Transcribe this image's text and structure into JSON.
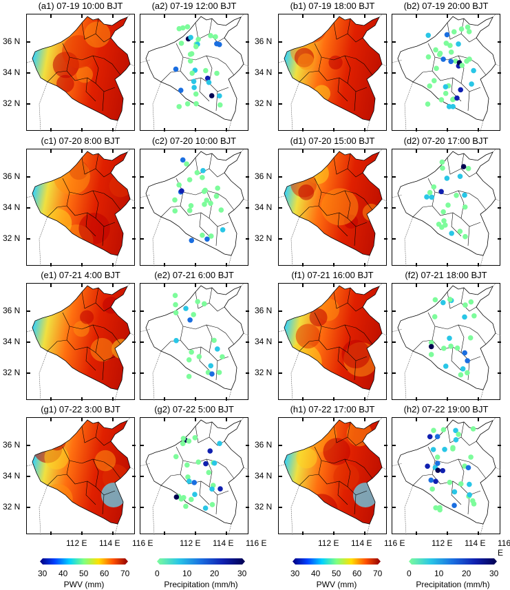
{
  "panels": [
    {
      "title": "(a1) 07-19 10:00 BJT",
      "kind": "pwv"
    },
    {
      "title": "(a2) 07-19 12:00 BJT",
      "kind": "precip"
    },
    {
      "title": "(b1) 07-19 18:00 BJT",
      "kind": "pwv"
    },
    {
      "title": "(b2) 07-19 20:00 BJT",
      "kind": "precip"
    },
    {
      "title": "(c1) 07-20 8:00 BJT",
      "kind": "pwv"
    },
    {
      "title": "(c2) 07-20 10:00 BJT",
      "kind": "precip"
    },
    {
      "title": "(d1) 07-20 15:00 BJT",
      "kind": "pwv"
    },
    {
      "title": "(d2) 07-20 17:00 BJT",
      "kind": "precip"
    },
    {
      "title": "(e1) 07-21 4:00 BJT",
      "kind": "pwv"
    },
    {
      "title": "(e2) 07-21 6:00 BJT",
      "kind": "precip"
    },
    {
      "title": "(f1) 07-21 16:00 BJT",
      "kind": "pwv"
    },
    {
      "title": "(f2) 07-21 18:00 BJT",
      "kind": "precip"
    },
    {
      "title": "(g1) 07-22 3:00 BJT",
      "kind": "pwv"
    },
    {
      "title": "(g2) 07-22 5:00 BJT",
      "kind": "precip"
    },
    {
      "title": "(h1) 07-22 17:00 BJT",
      "kind": "pwv"
    },
    {
      "title": "(h2) 07-22 19:00 BJT",
      "kind": "precip"
    }
  ],
  "lat_labels": [
    "36 N",
    "34 N",
    "32 N"
  ],
  "lon_labels": [
    "112 E",
    "114 E",
    "116 E"
  ],
  "colorbars": [
    {
      "label": "PWV (mm)",
      "ticks": [
        "30",
        "40",
        "50",
        "60",
        "70"
      ],
      "range": [
        30,
        70
      ],
      "colors": [
        "#00007f",
        "#0040ff",
        "#00d0ff",
        "#80ff80",
        "#ffe000",
        "#ff5000",
        "#900000"
      ]
    },
    {
      "label": "Precipitation (mm/h)",
      "ticks": [
        "0",
        "10",
        "20",
        "30"
      ],
      "range": [
        0,
        30
      ],
      "colors": [
        "#7dfc9b",
        "#29c6e6",
        "#1a6ee0",
        "#1020b0",
        "#000050"
      ]
    }
  ]
}
